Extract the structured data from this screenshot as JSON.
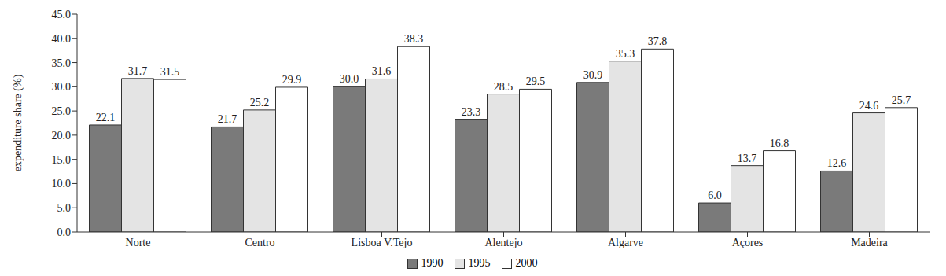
{
  "chart_data": {
    "type": "bar",
    "y_label": "expenditure share (%)",
    "categories": [
      "Norte",
      "Centro",
      "Lisboa V.Tejo",
      "Alentejo",
      "Algarve",
      "Açores",
      "Madeira"
    ],
    "series": [
      {
        "name": "1990",
        "color": "#7a7a7a",
        "values": [
          22.1,
          21.7,
          30.0,
          23.3,
          30.9,
          6.0,
          12.6
        ],
        "value_labels": [
          "22.1",
          "21.7",
          "30.0",
          "23.3",
          "30.9",
          "6.0",
          "12.6"
        ]
      },
      {
        "name": "1995",
        "color": "#e4e4e4",
        "values": [
          31.7,
          25.2,
          31.6,
          28.5,
          35.3,
          13.7,
          24.6
        ],
        "value_labels": [
          "31.7",
          "25.2",
          "31.6",
          "28.5",
          "35.3",
          "13.7",
          "24.6"
        ]
      },
      {
        "name": "2000",
        "color": "#ffffff",
        "values": [
          31.5,
          29.9,
          38.3,
          29.5,
          37.8,
          16.8,
          25.7
        ],
        "value_labels": [
          "31.5",
          "29.9",
          "38.3",
          "29.5",
          "37.8",
          "16.8",
          "25.7"
        ]
      }
    ],
    "ylim": [
      0,
      45
    ],
    "yticks": [
      {
        "value": 0,
        "label": "0.0"
      },
      {
        "value": 5,
        "label": "5.0"
      },
      {
        "value": 10,
        "label": "10.0"
      },
      {
        "value": 15,
        "label": "15.0"
      },
      {
        "value": 20,
        "label": "20.0"
      },
      {
        "value": 25,
        "label": "25.0"
      },
      {
        "value": 30,
        "label": "30.0"
      },
      {
        "value": 35,
        "label": "35.0"
      },
      {
        "value": 40,
        "label": "40.0"
      },
      {
        "value": 45,
        "label": "45.0"
      }
    ],
    "grid": false,
    "legend": "bottom",
    "data_labels": true
  }
}
